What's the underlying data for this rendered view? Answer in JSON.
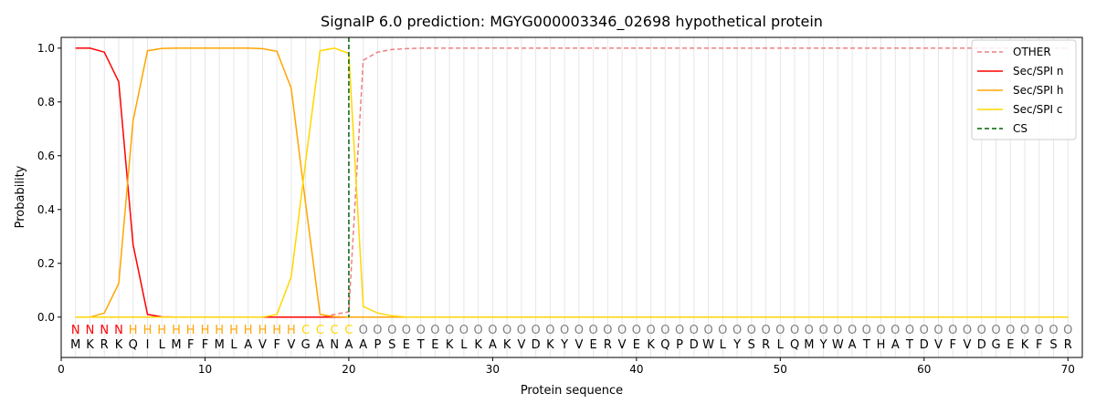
{
  "chart_data": {
    "type": "line",
    "title": "SignalP 6.0 prediction: MGYG000003346_02698 hypothetical protein",
    "xlabel": "Protein sequence",
    "ylabel": "Probability",
    "xlim": [
      0,
      71
    ],
    "ylim": [
      -0.15,
      1.04
    ],
    "xticks": [
      0,
      10,
      20,
      30,
      40,
      50,
      60,
      70
    ],
    "yticks": [
      0.0,
      0.2,
      0.4,
      0.6,
      0.8,
      1.0
    ],
    "ytick_labels": [
      "0.0",
      "0.2",
      "0.4",
      "0.6",
      "0.8",
      "1.0"
    ],
    "grid": "vertical lines at each residue",
    "legend_placement": "top-right",
    "sequence": "MKRKQILMFFMLAVFVGANAAPSETEKLKAKVDKYVERVEKQPDWLYSRLQMYWATHATDVFVDGEKFSR",
    "region_labels": "NNNNHHHHHHHHHHHHCCCCOOOOOOOOOOOOOOOOOOOOOOOOOOOOOOOOOOOOOOOOOOOOOOOOOO",
    "region_label_colors": {
      "N": "#ff0000",
      "H": "#ffa500",
      "C": "#ffd700",
      "O": "#808080"
    },
    "cs_position": 20,
    "series": [
      {
        "name": "OTHER",
        "color": "#f08080",
        "dash": "dashed",
        "values": [
          0,
          0,
          0,
          0,
          0,
          0,
          0,
          0,
          0,
          0,
          0,
          0,
          0,
          0,
          0,
          0,
          0,
          0,
          0.01,
          0.02,
          0.955,
          0.985,
          0.995,
          0.998,
          1,
          1,
          1,
          1,
          1,
          1,
          1,
          1,
          1,
          1,
          1,
          1,
          1,
          1,
          1,
          1,
          1,
          1,
          1,
          1,
          1,
          1,
          1,
          1,
          1,
          1,
          1,
          1,
          1,
          1,
          1,
          1,
          1,
          1,
          1,
          1,
          1,
          1,
          1,
          1,
          1,
          1,
          1,
          1,
          1,
          1
        ]
      },
      {
        "name": "Sec/SPI n",
        "color": "#ff0000",
        "dash": "solid",
        "values": [
          1.0,
          1.0,
          0.985,
          0.875,
          0.27,
          0.01,
          0.001,
          0,
          0,
          0,
          0,
          0,
          0,
          0,
          0,
          0,
          0,
          0,
          0,
          0,
          0,
          0,
          0,
          0,
          0,
          0,
          0,
          0,
          0,
          0,
          0,
          0,
          0,
          0,
          0,
          0,
          0,
          0,
          0,
          0,
          0,
          0,
          0,
          0,
          0,
          0,
          0,
          0,
          0,
          0,
          0,
          0,
          0,
          0,
          0,
          0,
          0,
          0,
          0,
          0,
          0,
          0,
          0,
          0,
          0,
          0,
          0,
          0,
          0,
          0
        ]
      },
      {
        "name": "Sec/SPI h",
        "color": "#ffa500",
        "dash": "solid",
        "values": [
          0,
          0,
          0.015,
          0.125,
          0.73,
          0.99,
          0.999,
          1,
          1,
          1,
          1,
          1,
          1,
          0.998,
          0.988,
          0.85,
          0.42,
          0.01,
          0.002,
          0,
          0,
          0,
          0,
          0,
          0,
          0,
          0,
          0,
          0,
          0,
          0,
          0,
          0,
          0,
          0,
          0,
          0,
          0,
          0,
          0,
          0,
          0,
          0,
          0,
          0,
          0,
          0,
          0,
          0,
          0,
          0,
          0,
          0,
          0,
          0,
          0,
          0,
          0,
          0,
          0,
          0,
          0,
          0,
          0,
          0,
          0,
          0,
          0,
          0,
          0
        ]
      },
      {
        "name": "Sec/SPI c",
        "color": "#ffd700",
        "dash": "solid",
        "values": [
          0,
          0,
          0,
          0,
          0,
          0,
          0,
          0,
          0,
          0,
          0,
          0,
          0,
          0,
          0.01,
          0.15,
          0.58,
          0.99,
          1.0,
          0.98,
          0.04,
          0.015,
          0.005,
          0,
          0,
          0,
          0,
          0,
          0,
          0,
          0,
          0,
          0,
          0,
          0,
          0,
          0,
          0,
          0,
          0,
          0,
          0,
          0,
          0,
          0,
          0,
          0,
          0,
          0,
          0,
          0,
          0,
          0,
          0,
          0,
          0,
          0,
          0,
          0,
          0,
          0,
          0,
          0,
          0,
          0,
          0,
          0,
          0,
          0,
          0
        ]
      },
      {
        "name": "CS",
        "color": "#006400",
        "dash": "dashed"
      }
    ]
  }
}
